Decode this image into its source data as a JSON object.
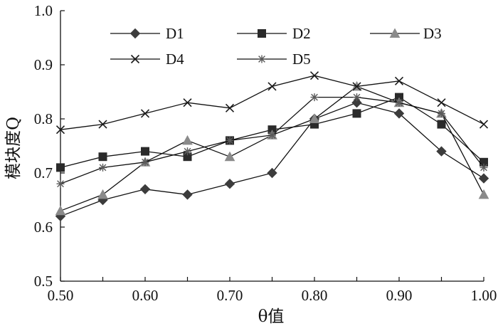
{
  "chart_data": {
    "type": "line",
    "title": "",
    "xlabel": "θ值",
    "ylabel": "模块度Q",
    "x": [
      0.5,
      0.55,
      0.6,
      0.65,
      0.7,
      0.75,
      0.8,
      0.85,
      0.9,
      0.95,
      1.0
    ],
    "x_tick_labels": [
      "0.50",
      "0.60",
      "0.70",
      "0.80",
      "0.90",
      "1.00"
    ],
    "x_tick_values": [
      0.5,
      0.6,
      0.7,
      0.8,
      0.9,
      1.0
    ],
    "y_tick_labels": [
      "0.5",
      "0.6",
      "0.7",
      "0.8",
      "0.9",
      "1.0"
    ],
    "y_tick_values": [
      0.5,
      0.6,
      0.7,
      0.8,
      0.9,
      1.0
    ],
    "xlim": [
      0.5,
      1.0
    ],
    "ylim": [
      0.5,
      1.0
    ],
    "grid": false,
    "legend_position": "top",
    "series": [
      {
        "name": "D1",
        "marker": "diamond",
        "color": "#3c3c3c",
        "values": [
          0.62,
          0.65,
          0.67,
          0.66,
          0.68,
          0.7,
          0.8,
          0.83,
          0.81,
          0.74,
          0.69
        ]
      },
      {
        "name": "D2",
        "marker": "square",
        "color": "#2a2a2a",
        "values": [
          0.71,
          0.73,
          0.74,
          0.73,
          0.76,
          0.78,
          0.79,
          0.81,
          0.84,
          0.79,
          0.72
        ]
      },
      {
        "name": "D3",
        "marker": "triangle",
        "color": "#8a8a8a",
        "values": [
          0.63,
          0.66,
          0.72,
          0.76,
          0.73,
          0.77,
          0.8,
          0.86,
          0.83,
          0.81,
          0.66
        ]
      },
      {
        "name": "D4",
        "marker": "x",
        "color": "#1a1a1a",
        "values": [
          0.78,
          0.79,
          0.81,
          0.83,
          0.82,
          0.86,
          0.88,
          0.86,
          0.87,
          0.83,
          0.79
        ]
      },
      {
        "name": "D5",
        "marker": "star",
        "color": "#5a5a5a",
        "values": [
          0.68,
          0.71,
          0.72,
          0.74,
          0.76,
          0.77,
          0.84,
          0.84,
          0.83,
          0.81,
          0.71
        ]
      }
    ]
  }
}
